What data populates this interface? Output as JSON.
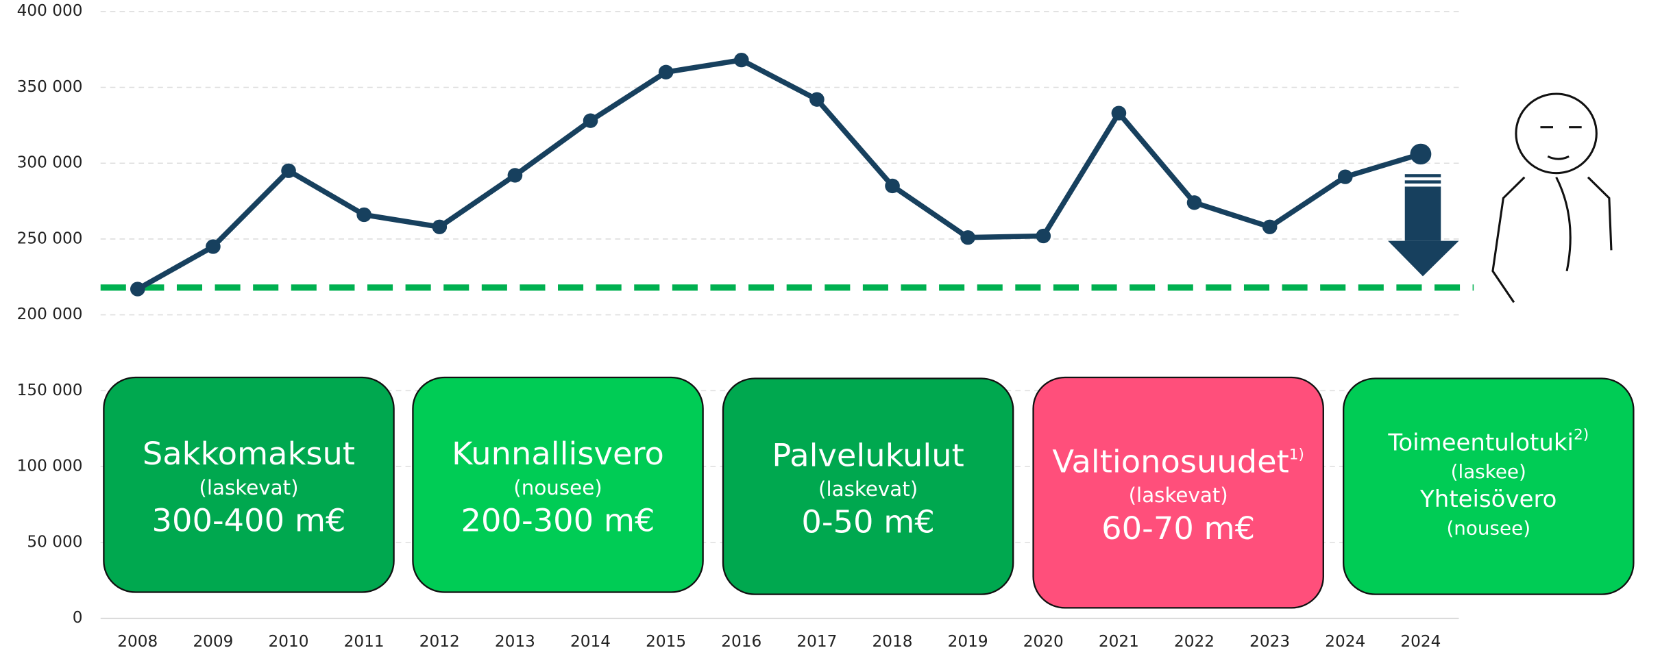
{
  "chart_data": {
    "type": "line",
    "categories": [
      "2008",
      "2009",
      "2010",
      "2011",
      "2012",
      "2013",
      "2014",
      "2015",
      "2016",
      "2017",
      "2018",
      "2019",
      "2020",
      "2021",
      "2022",
      "2023",
      "2024",
      "2024"
    ],
    "series": [
      {
        "color": "#17405e",
        "values": [
          217000,
          245000,
          295000,
          266000,
          258000,
          292000,
          328000,
          360000,
          368000,
          342000,
          285000,
          251000,
          252000,
          333000,
          274000,
          258000,
          291000,
          306000
        ]
      }
    ],
    "ylim": [
      0,
      400000
    ],
    "yticks": [
      {
        "value": 0,
        "label": "0"
      },
      {
        "value": 50000,
        "label": "50 000"
      },
      {
        "value": 100000,
        "label": "100 000"
      },
      {
        "value": 150000,
        "label": "150 000"
      },
      {
        "value": 200000,
        "label": "200 000"
      },
      {
        "value": 250000,
        "label": "250 000"
      },
      {
        "value": 300000,
        "label": "300 000"
      },
      {
        "value": 350000,
        "label": "350 000"
      },
      {
        "value": 400000,
        "label": "400 000"
      }
    ],
    "grid": true,
    "reference_line": {
      "value": 218000,
      "color": "#00b050"
    },
    "annotations": [
      {
        "color": "#00a84f",
        "lines": [
          "Sakkomaksut",
          "(laskevat)",
          "300-400 m€"
        ]
      },
      {
        "color": "#00cc55",
        "lines": [
          "Kunnallisvero",
          "(nousee)",
          "200-300 m€"
        ]
      },
      {
        "color": "#00a84f",
        "lines": [
          "Palvelukulut",
          "(laskevat)",
          "0-50 m€"
        ]
      },
      {
        "color": "#ff4f7b",
        "lines": [
          "Valtionosuudet",
          "(laskevat)",
          "60-70 m€"
        ],
        "sup": "1)"
      },
      {
        "color": "#00cc55",
        "lines": [
          "Toimeentulotuki",
          "(laskee)",
          "Yhteisövero",
          "(nousee)"
        ],
        "sup": "2)"
      }
    ]
  }
}
